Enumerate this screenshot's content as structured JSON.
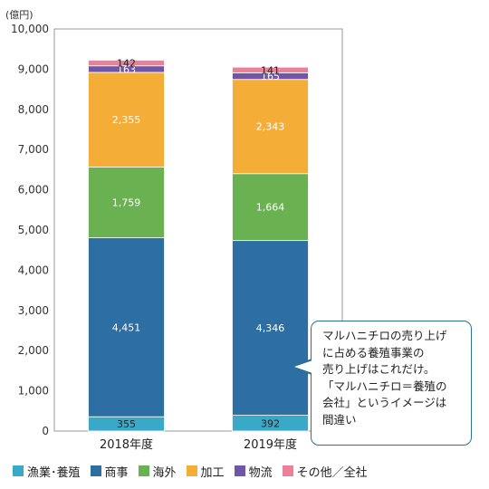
{
  "chart_data": {
    "type": "bar",
    "stacked": true,
    "unit": "(億円)",
    "categories": [
      "2018年度",
      "2019年度"
    ],
    "ylim": [
      0,
      10000
    ],
    "yticks": [
      "0",
      "1,000",
      "2,000",
      "3,000",
      "4,000",
      "5,000",
      "6,000",
      "7,000",
      "8,000",
      "9,000",
      "10,000"
    ],
    "series": [
      {
        "name": "漁業･養殖",
        "color": "#3aa9c7",
        "values": [
          355,
          392
        ],
        "labels": [
          "355",
          "392"
        ]
      },
      {
        "name": "商事",
        "color": "#2e6fa3",
        "values": [
          4451,
          4346
        ],
        "labels": [
          "4,451",
          "4,346"
        ]
      },
      {
        "name": "海外",
        "color": "#6ab152",
        "values": [
          1759,
          1664
        ],
        "labels": [
          "1,759",
          "1,664"
        ]
      },
      {
        "name": "加工",
        "color": "#f4ae38",
        "values": [
          2355,
          2343
        ],
        "labels": [
          "2,355",
          "2,343"
        ]
      },
      {
        "name": "物流",
        "color": "#7055a8",
        "values": [
          163,
          165
        ],
        "labels": [
          "163",
          "165"
        ]
      },
      {
        "name": "その他／全社",
        "color": "#ee7f98",
        "values": [
          142,
          141
        ],
        "labels": [
          "142",
          "141"
        ]
      }
    ],
    "grid": false,
    "legend_position": "bottom"
  },
  "callout": {
    "lines": [
      "マルハニチロの売り上げ",
      "に占める養殖事業の",
      "売り上げはこれだけ。",
      "「マルハニチロ＝養殖の",
      "会社」というイメージは",
      "間違い"
    ]
  }
}
